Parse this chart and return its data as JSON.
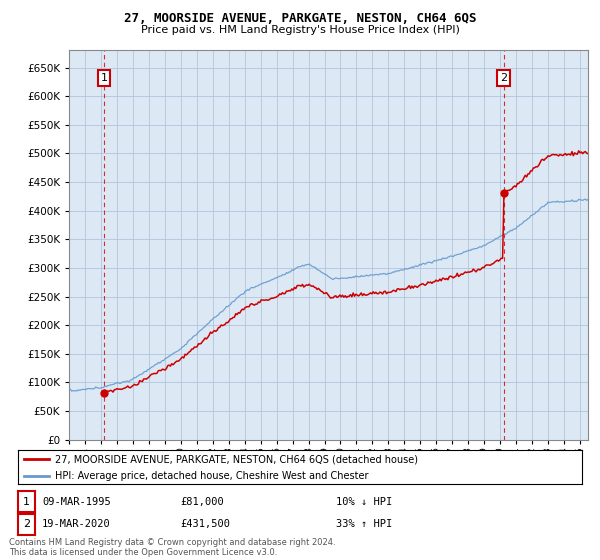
{
  "title": "27, MOORSIDE AVENUE, PARKGATE, NESTON, CH64 6QS",
  "subtitle": "Price paid vs. HM Land Registry's House Price Index (HPI)",
  "ylim": [
    0,
    680000
  ],
  "yticks": [
    0,
    50000,
    100000,
    150000,
    200000,
    250000,
    300000,
    350000,
    400000,
    450000,
    500000,
    550000,
    600000,
    650000
  ],
  "sale1_date": 1995.19,
  "sale1_price": 81000,
  "sale1_label": "1",
  "sale2_date": 2020.21,
  "sale2_price": 431500,
  "sale2_label": "2",
  "hpi_color": "#6699cc",
  "price_color": "#cc0000",
  "background_color": "#dce9f5",
  "grid_color": "#b0c4de",
  "legend_line1": "27, MOORSIDE AVENUE, PARKGATE, NESTON, CH64 6QS (detached house)",
  "legend_line2": "HPI: Average price, detached house, Cheshire West and Chester",
  "table_row1": [
    "1",
    "09-MAR-1995",
    "£81,000",
    "10% ↓ HPI"
  ],
  "table_row2": [
    "2",
    "19-MAR-2020",
    "£431,500",
    "33% ↑ HPI"
  ],
  "footnote": "Contains HM Land Registry data © Crown copyright and database right 2024.\nThis data is licensed under the Open Government Licence v3.0.",
  "xmin": 1993,
  "xmax": 2025.5
}
